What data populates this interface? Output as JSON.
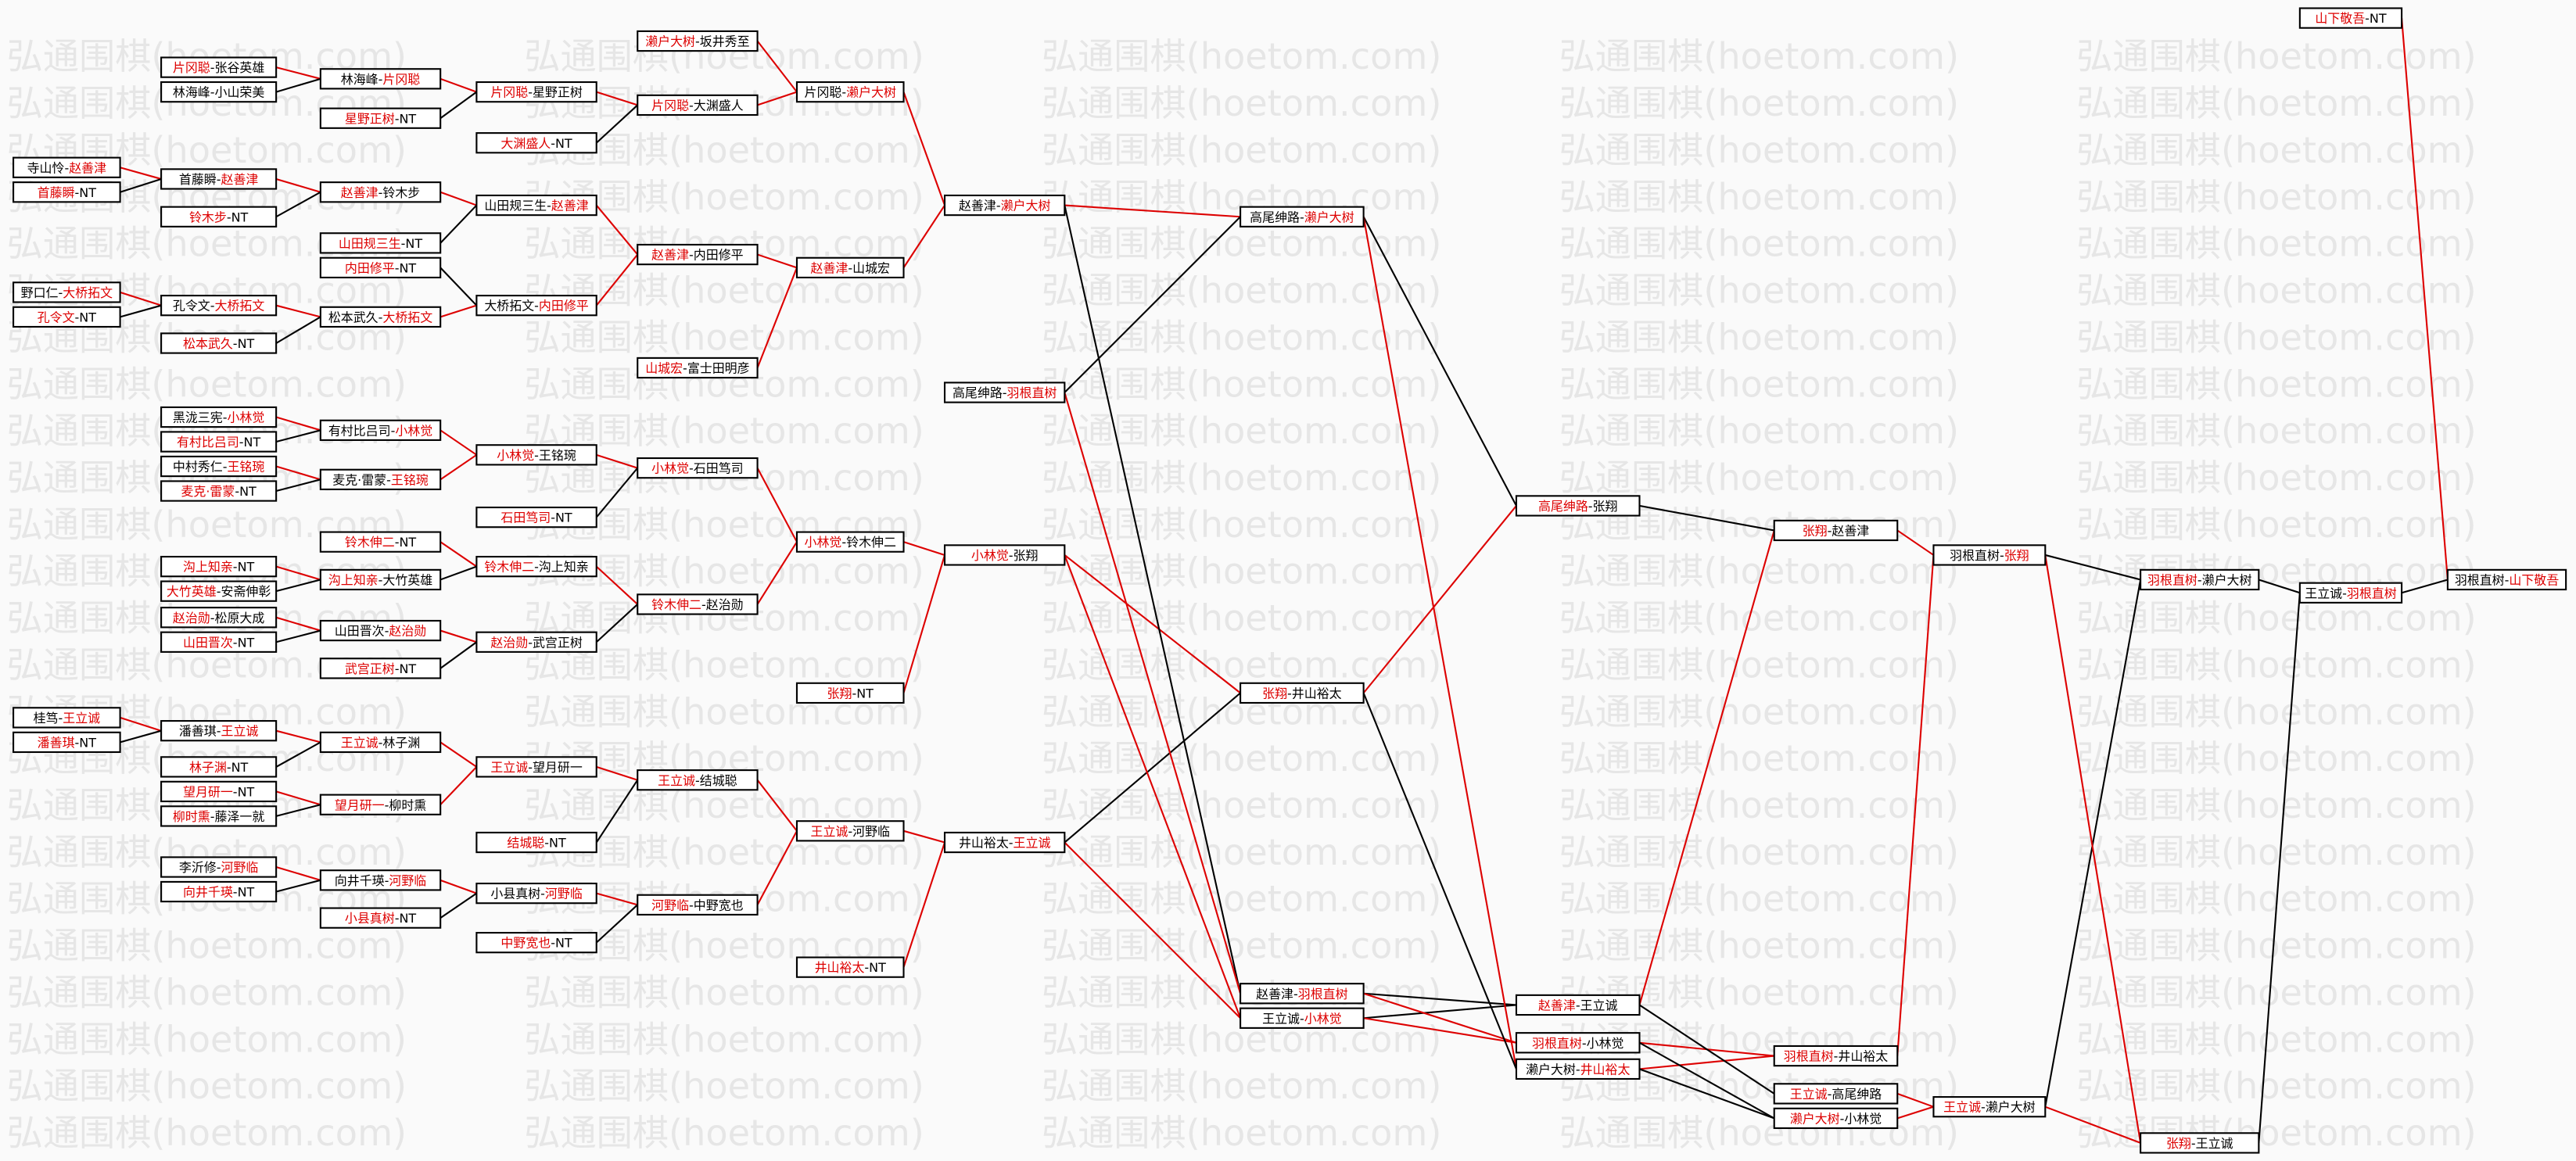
{
  "watermark": "弘通围棋(hoetom.com)",
  "separator": "-",
  "matches": [
    {
      "players": [
        "寺山怜",
        "赵善津"
      ],
      "winner": 1
    },
    {
      "players": [
        "首藤瞬",
        "NT"
      ],
      "winner": 0
    },
    {
      "players": [
        "野口仁",
        "大桥拓文"
      ],
      "winner": 1
    },
    {
      "players": [
        "孔令文",
        "NT"
      ],
      "winner": 0
    },
    {
      "players": [
        "桂笃",
        "王立诚"
      ],
      "winner": 1
    },
    {
      "players": [
        "潘善琪",
        "NT"
      ],
      "winner": 0
    },
    {
      "players": [
        "片冈聪",
        "张谷英雄"
      ],
      "winner": 0
    },
    {
      "players": [
        "林海峰",
        "小山荣美"
      ],
      "winner": null
    },
    {
      "players": [
        "首藤瞬",
        "赵善津"
      ],
      "winner": 1
    },
    {
      "players": [
        "铃木步",
        "NT"
      ],
      "winner": 0
    },
    {
      "players": [
        "孔令文",
        "大桥拓文"
      ],
      "winner": 1
    },
    {
      "players": [
        "松本武久",
        "NT"
      ],
      "winner": 0
    },
    {
      "players": [
        "黑泷三宪",
        "小林觉"
      ],
      "winner": 1
    },
    {
      "players": [
        "有村比吕司",
        "NT"
      ],
      "winner": 0
    },
    {
      "players": [
        "中村秀仁",
        "王铭琬"
      ],
      "winner": 1
    },
    {
      "players": [
        "麦克·雷蒙",
        "NT"
      ],
      "winner": 0
    },
    {
      "players": [
        "沟上知亲",
        "NT"
      ],
      "winner": 0
    },
    {
      "players": [
        "大竹英雄",
        "安斋伸彰"
      ],
      "winner": 0
    },
    {
      "players": [
        "赵治勋",
        "松原大成"
      ],
      "winner": 0
    },
    {
      "players": [
        "山田晋次",
        "NT"
      ],
      "winner": 0
    },
    {
      "players": [
        "潘善琪",
        "王立诚"
      ],
      "winner": 1
    },
    {
      "players": [
        "林子渊",
        "NT"
      ],
      "winner": 0
    },
    {
      "players": [
        "望月研一",
        "NT"
      ],
      "winner": 0
    },
    {
      "players": [
        "柳时熏",
        "藤泽一就"
      ],
      "winner": 0
    },
    {
      "players": [
        "李沂修",
        "河野临"
      ],
      "winner": 1
    },
    {
      "players": [
        "向井千瑛",
        "NT"
      ],
      "winner": 0
    },
    {
      "players": [
        "林海峰",
        "片冈聪"
      ],
      "winner": 1
    },
    {
      "players": [
        "星野正树",
        "NT"
      ],
      "winner": 0
    },
    {
      "players": [
        "赵善津",
        "铃木步"
      ],
      "winner": 0
    },
    {
      "players": [
        "山田规三生",
        "NT"
      ],
      "winner": 0
    },
    {
      "players": [
        "内田修平",
        "NT"
      ],
      "winner": 0
    },
    {
      "players": [
        "松本武久",
        "大桥拓文"
      ],
      "winner": 1
    },
    {
      "players": [
        "有村比吕司",
        "小林觉"
      ],
      "winner": 1
    },
    {
      "players": [
        "麦克·雷蒙",
        "王铭琬"
      ],
      "winner": 1
    },
    {
      "players": [
        "铃木伸二",
        "NT"
      ],
      "winner": 0
    },
    {
      "players": [
        "沟上知亲",
        "大竹英雄"
      ],
      "winner": 0
    },
    {
      "players": [
        "山田晋次",
        "赵治勋"
      ],
      "winner": 1
    },
    {
      "players": [
        "武宫正树",
        "NT"
      ],
      "winner": 0
    },
    {
      "players": [
        "王立诚",
        "林子渊"
      ],
      "winner": 0
    },
    {
      "players": [
        "望月研一",
        "柳时熏"
      ],
      "winner": 0
    },
    {
      "players": [
        "向井千瑛",
        "河野临"
      ],
      "winner": 1
    },
    {
      "players": [
        "小县真树",
        "NT"
      ],
      "winner": 0
    },
    {
      "players": [
        "片冈聪",
        "星野正树"
      ],
      "winner": 0
    },
    {
      "players": [
        "山田规三生",
        "赵善津"
      ],
      "winner": 1
    },
    {
      "players": [
        "大桥拓文",
        "内田修平"
      ],
      "winner": 1
    },
    {
      "players": [
        "小林觉",
        "王铭琬"
      ],
      "winner": 0
    },
    {
      "players": [
        "石田笃司",
        "NT"
      ],
      "winner": 0
    },
    {
      "players": [
        "铃木伸二",
        "沟上知亲"
      ],
      "winner": 0
    },
    {
      "players": [
        "赵治勋",
        "武宫正树"
      ],
      "winner": 0
    },
    {
      "players": [
        "王立诚",
        "望月研一"
      ],
      "winner": 0
    },
    {
      "players": [
        "结城聪",
        "NT"
      ],
      "winner": 0
    },
    {
      "players": [
        "小县真树",
        "河野临"
      ],
      "winner": 1
    },
    {
      "players": [
        "中野宽也",
        "NT"
      ],
      "winner": 0
    },
    {
      "players": [
        "濑户大树",
        "坂井秀至"
      ],
      "winner": 0
    },
    {
      "players": [
        "片冈聪",
        "大渊盛人"
      ],
      "winner": 0
    },
    {
      "players": [
        "大渊盛人",
        "NT"
      ],
      "winner": 0
    },
    {
      "players": [
        "赵善津",
        "内田修平"
      ],
      "winner": 0
    },
    {
      "players": [
        "山城宏",
        "富士田明彦"
      ],
      "winner": 0
    },
    {
      "players": [
        "小林觉",
        "石田笃司"
      ],
      "winner": 0
    },
    {
      "players": [
        "铃木伸二",
        "赵治勋"
      ],
      "winner": 0
    },
    {
      "players": [
        "王立诚",
        "结城聪"
      ],
      "winner": 0
    },
    {
      "players": [
        "河野临",
        "中野宽也"
      ],
      "winner": 0
    },
    {
      "players": [
        "片冈聪",
        "濑户大树"
      ],
      "winner": 1
    },
    {
      "players": [
        "赵善津",
        "山城宏"
      ],
      "winner": 0
    },
    {
      "players": [
        "小林觉",
        "铃木伸二"
      ],
      "winner": 0
    },
    {
      "players": [
        "张翔",
        "NT"
      ],
      "winner": 0
    },
    {
      "players": [
        "王立诚",
        "河野临"
      ],
      "winner": 0
    },
    {
      "players": [
        "井山裕太",
        "NT"
      ],
      "winner": 0
    },
    {
      "players": [
        "赵善津",
        "濑户大树"
      ],
      "winner": 1
    },
    {
      "players": [
        "高尾绅路",
        "羽根直树"
      ],
      "winner": 1
    },
    {
      "players": [
        "小林觉",
        "张翔"
      ],
      "winner": 0
    },
    {
      "players": [
        "井山裕太",
        "王立诚"
      ],
      "winner": 1
    },
    {
      "players": [
        "高尾绅路",
        "濑户大树"
      ],
      "winner": 1
    },
    {
      "players": [
        "张翔",
        "井山裕太"
      ],
      "winner": 0
    },
    {
      "players": [
        "赵善津",
        "羽根直树"
      ],
      "winner": 1
    },
    {
      "players": [
        "王立诚",
        "小林觉"
      ],
      "winner": 1
    },
    {
      "players": [
        "高尾绅路",
        "张翔"
      ],
      "winner": 0
    },
    {
      "players": [
        "赵善津",
        "王立诚"
      ],
      "winner": 0
    },
    {
      "players": [
        "羽根直树",
        "小林觉"
      ],
      "winner": 0
    },
    {
      "players": [
        "濑户大树",
        "井山裕太"
      ],
      "winner": 1
    },
    {
      "players": [
        "张翔",
        "赵善津"
      ],
      "winner": 0
    },
    {
      "players": [
        "羽根直树",
        "井山裕太"
      ],
      "winner": 0
    },
    {
      "players": [
        "王立诚",
        "高尾绅路"
      ],
      "winner": 0
    },
    {
      "players": [
        "濑户大树",
        "小林觉"
      ],
      "winner": 0
    },
    {
      "players": [
        "羽根直树",
        "张翔"
      ],
      "winner": 1
    },
    {
      "players": [
        "王立诚",
        "濑户大树"
      ],
      "winner": 0
    },
    {
      "players": [
        "羽根直树",
        "濑户大树"
      ],
      "winner": 0
    },
    {
      "players": [
        "张翔",
        "王立诚"
      ],
      "winner": 0
    },
    {
      "players": [
        "王立诚",
        "羽根直树"
      ],
      "winner": 1
    },
    {
      "players": [
        "山下敬吾",
        "NT"
      ],
      "winner": 0
    },
    {
      "players": [
        "羽根直树",
        "山下敬吾"
      ],
      "winner": 1
    }
  ]
}
